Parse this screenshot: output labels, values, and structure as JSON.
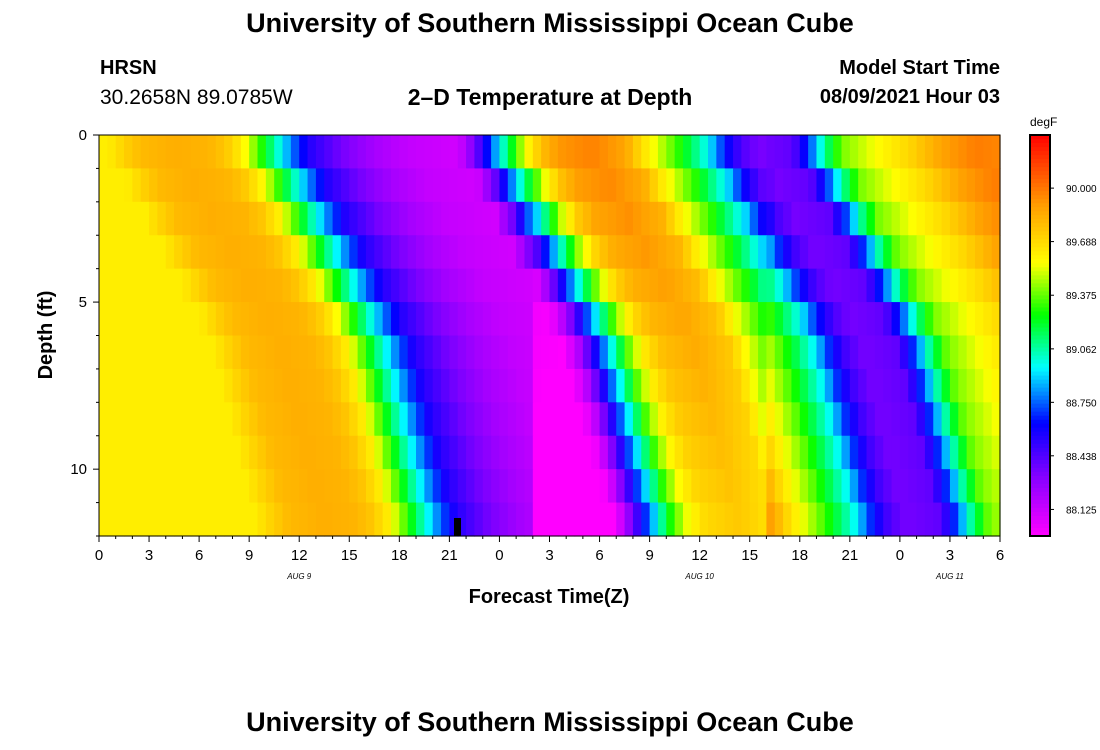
{
  "page": {
    "title_top": "University of Southern Mississippi Ocean Cube",
    "title_bottom": "University of Southern Mississippi Ocean Cube",
    "station_code": "HRSN",
    "station_coords": "30.2658N  89.0785W",
    "plot_title": "2–D Temperature at Depth",
    "model_start_label": "Model Start Time",
    "model_start_value": "08/09/2021 Hour 03"
  },
  "chart_data": {
    "type": "heatmap",
    "title": "2–D Temperature at Depth",
    "xlabel": "Forecast Time(Z)",
    "ylabel": "Depth (ft)",
    "x_range_hours": [
      0,
      54
    ],
    "y_range_ft": [
      0,
      12
    ],
    "x_ticks": [
      "0",
      "3",
      "6",
      "9",
      "12",
      "15",
      "18",
      "21",
      "0",
      "3",
      "6",
      "9",
      "12",
      "15",
      "18",
      "21",
      "0",
      "3",
      "6"
    ],
    "x_tick_hours": [
      0,
      3,
      6,
      9,
      12,
      15,
      18,
      21,
      24,
      27,
      30,
      33,
      36,
      39,
      42,
      45,
      48,
      51,
      54
    ],
    "date_labels": [
      {
        "label": "AUG 9",
        "hour": 12
      },
      {
        "label": "AUG 10",
        "hour": 36
      },
      {
        "label": "AUG 11",
        "hour": 51
      }
    ],
    "y_ticks": [
      "0",
      "5",
      "10"
    ],
    "y_tick_values": [
      0,
      5,
      10
    ],
    "colorbar": {
      "unit": "degF",
      "min": 87.97,
      "max": 90.31,
      "labels": [
        "90.000",
        "89.688",
        "89.375",
        "89.062",
        "88.750",
        "88.438",
        "88.125"
      ],
      "label_values": [
        90.0,
        89.688,
        89.375,
        89.062,
        88.75,
        88.438,
        88.125
      ]
    },
    "depth_rows_ft": [
      0.5,
      1.5,
      2.5,
      3.5,
      4.5,
      5.5,
      6.5,
      7.5,
      8.5,
      9.5,
      10.5,
      11.5
    ],
    "current_time_marker_hour": 21.5
  }
}
